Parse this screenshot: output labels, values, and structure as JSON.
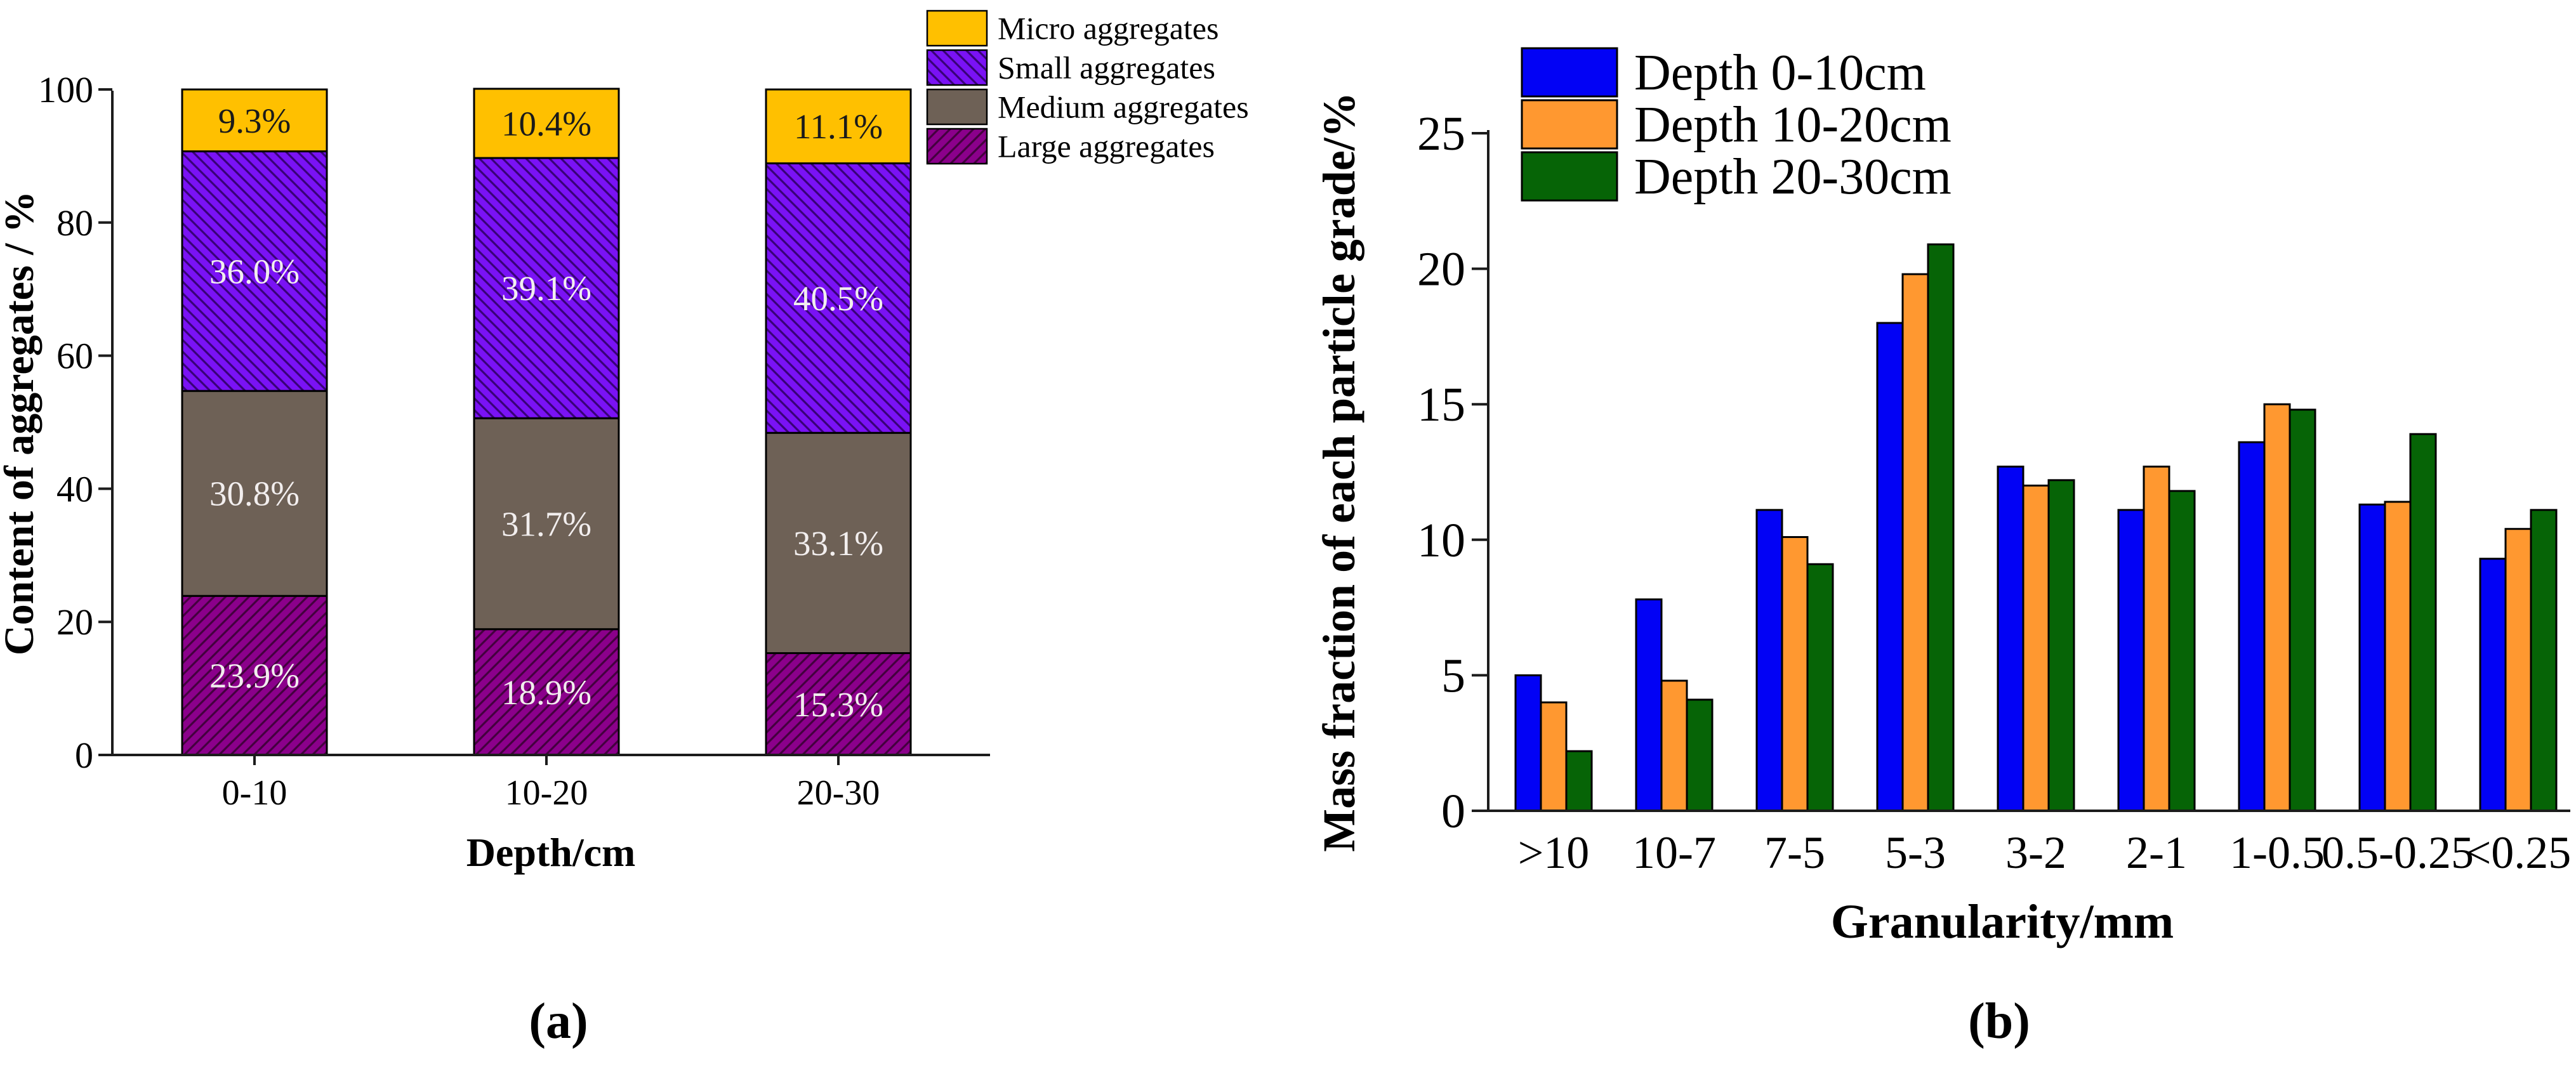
{
  "figure": {
    "background": "#FFFFFF",
    "captions": {
      "a": "(a)",
      "b": "(b)"
    }
  },
  "chart_data": [
    {
      "id": "a",
      "type": "bar",
      "subtype": "stacked",
      "title": "",
      "xlabel": "Depth/cm",
      "ylabel": "Content of aggregates / %",
      "ylim": [
        0,
        100
      ],
      "yticks": [
        0,
        20,
        40,
        60,
        80,
        100
      ],
      "grid": "off",
      "legend_position": "top-right-outside",
      "categories": [
        "0-10",
        "10-20",
        "20-30"
      ],
      "series": [
        {
          "name": "Large aggregates",
          "color": "#8B008B",
          "hatch": "/",
          "hatch_color": "#43013E",
          "label_color": "#F2EEEE",
          "values": [
            23.9,
            18.9,
            15.3
          ],
          "labels": [
            "23.9%",
            "18.9%",
            "15.3%"
          ]
        },
        {
          "name": "Medium aggregates",
          "color": "#6E6156",
          "hatch": "none",
          "hatch_color": "",
          "label_color": "#F2EEEE",
          "values": [
            30.8,
            31.7,
            33.1
          ],
          "labels": [
            "30.8%",
            "31.7%",
            "33.1%"
          ]
        },
        {
          "name": "Small aggregates",
          "color": "#7A12F5",
          "hatch": "\\",
          "hatch_color": "#380277",
          "label_color": "#F2EEEE",
          "values": [
            36.0,
            39.1,
            40.5
          ],
          "labels": [
            "36.0%",
            "39.1%",
            "40.5%"
          ]
        },
        {
          "name": "Micro aggregates",
          "color": "#FFC000",
          "hatch": "none",
          "hatch_color": "",
          "label_color": "#1A1A1A",
          "values": [
            9.3,
            10.4,
            11.1
          ],
          "labels": [
            "9.3%",
            "10.4%",
            "11.1%"
          ]
        }
      ],
      "legend_order_note": "legend shown top-to-bottom: Micro, Small, Medium, Large (reverse of stack order)"
    },
    {
      "id": "b",
      "type": "bar",
      "subtype": "grouped",
      "title": "",
      "xlabel": "Granularity/mm",
      "ylabel": "Mass fraction of each particle grade/%",
      "ylim": [
        0,
        25
      ],
      "yticks": [
        0,
        5,
        10,
        15,
        20,
        25
      ],
      "grid": "off",
      "legend_position": "top-left-inside",
      "categories": [
        ">10",
        "10-7",
        "7-5",
        "5-3",
        "3-2",
        "2-1",
        "1-0.5",
        "0.5-0.25",
        "<0.25"
      ],
      "series": [
        {
          "name": "Depth 0-10cm",
          "color": "#0202F5",
          "values": [
            5.0,
            7.8,
            11.1,
            18.0,
            12.7,
            11.1,
            13.6,
            11.3,
            9.3
          ]
        },
        {
          "name": "Depth 10-20cm",
          "color": "#FF9830",
          "values": [
            4.0,
            4.8,
            10.1,
            19.8,
            12.0,
            12.7,
            15.0,
            11.4,
            10.4
          ]
        },
        {
          "name": "Depth 20-30cm",
          "color": "#066406",
          "values": [
            2.2,
            4.1,
            9.1,
            20.9,
            12.2,
            11.8,
            14.8,
            13.9,
            11.1
          ]
        }
      ],
      "axis_color": "#1C1C1C"
    }
  ]
}
